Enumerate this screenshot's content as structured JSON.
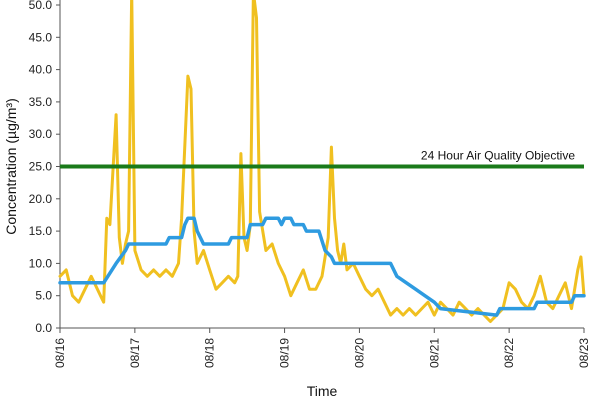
{
  "chart_data": {
    "type": "line",
    "title": "",
    "xlabel": "Time",
    "ylabel": "Concentration (µg/m³)",
    "ylim": [
      0,
      50
    ],
    "xlim": [
      "08/16",
      "08/23"
    ],
    "y_ticks": [
      "0.0",
      "5.0",
      "10.0",
      "15.0",
      "20.0",
      "25.0",
      "30.0",
      "35.0",
      "40.0",
      "45.0",
      "50.0"
    ],
    "x_ticks": [
      "08/16",
      "08/17",
      "08/18",
      "08/19",
      "08/20",
      "08/21",
      "08/22",
      "08/23"
    ],
    "grid": false,
    "legend": "none",
    "annotations": [
      {
        "text": "24 Hour Air Quality Objective",
        "value": 25
      }
    ],
    "reference_line": {
      "value": 25,
      "color": "#1a7a1a"
    },
    "series": [
      {
        "color": "#f0c020",
        "points": [
          [
            "08/16 00:00",
            8
          ],
          [
            "08/16 02:00",
            9
          ],
          [
            "08/16 04:00",
            5
          ],
          [
            "08/16 06:00",
            4
          ],
          [
            "08/16 08:00",
            6
          ],
          [
            "08/16 10:00",
            8
          ],
          [
            "08/16 12:00",
            6
          ],
          [
            "08/16 13:00",
            5
          ],
          [
            "08/16 14:00",
            4
          ],
          [
            "08/16 15:00",
            17
          ],
          [
            "08/16 16:00",
            16
          ],
          [
            "08/16 18:00",
            33
          ],
          [
            "08/16 19:00",
            14
          ],
          [
            "08/16 20:00",
            10
          ],
          [
            "08/16 21:00",
            13
          ],
          [
            "08/16 22:00",
            15
          ],
          [
            "08/16 23:00",
            52
          ],
          [
            "08/17 00:00",
            12
          ],
          [
            "08/17 02:00",
            9
          ],
          [
            "08/17 04:00",
            8
          ],
          [
            "08/17 06:00",
            9
          ],
          [
            "08/17 08:00",
            8
          ],
          [
            "08/17 10:00",
            9
          ],
          [
            "08/17 12:00",
            8
          ],
          [
            "08/17 14:00",
            10
          ],
          [
            "08/17 15:00",
            17
          ],
          [
            "08/17 17:00",
            39
          ],
          [
            "08/17 18:00",
            37
          ],
          [
            "08/17 19:00",
            15
          ],
          [
            "08/17 20:00",
            10
          ],
          [
            "08/17 22:00",
            12
          ],
          [
            "08/18 00:00",
            9
          ],
          [
            "08/18 02:00",
            6
          ],
          [
            "08/18 04:00",
            7
          ],
          [
            "08/18 06:00",
            8
          ],
          [
            "08/18 08:00",
            7
          ],
          [
            "08/18 09:00",
            8
          ],
          [
            "08/18 10:00",
            27
          ],
          [
            "08/18 11:00",
            14
          ],
          [
            "08/18 12:00",
            12
          ],
          [
            "08/18 13:00",
            16
          ],
          [
            "08/18 14:00",
            52
          ],
          [
            "08/18 15:00",
            48
          ],
          [
            "08/18 16:00",
            18
          ],
          [
            "08/18 18:00",
            12
          ],
          [
            "08/18 20:00",
            13
          ],
          [
            "08/18 22:00",
            10
          ],
          [
            "08/19 00:00",
            8
          ],
          [
            "08/19 02:00",
            5
          ],
          [
            "08/19 04:00",
            7
          ],
          [
            "08/19 06:00",
            9
          ],
          [
            "08/19 08:00",
            6
          ],
          [
            "08/19 10:00",
            6
          ],
          [
            "08/19 12:00",
            8
          ],
          [
            "08/19 14:00",
            14
          ],
          [
            "08/19 15:00",
            28
          ],
          [
            "08/19 16:00",
            17
          ],
          [
            "08/19 17:00",
            12
          ],
          [
            "08/19 18:00",
            10
          ],
          [
            "08/19 19:00",
            13
          ],
          [
            "08/19 20:00",
            9
          ],
          [
            "08/19 22:00",
            10
          ],
          [
            "08/20 00:00",
            8
          ],
          [
            "08/20 02:00",
            6
          ],
          [
            "08/20 04:00",
            5
          ],
          [
            "08/20 06:00",
            6
          ],
          [
            "08/20 08:00",
            4
          ],
          [
            "08/20 10:00",
            2
          ],
          [
            "08/20 12:00",
            3
          ],
          [
            "08/20 14:00",
            2
          ],
          [
            "08/20 16:00",
            3
          ],
          [
            "08/20 18:00",
            2
          ],
          [
            "08/20 20:00",
            3
          ],
          [
            "08/20 22:00",
            4
          ],
          [
            "08/21 00:00",
            2
          ],
          [
            "08/21 02:00",
            4
          ],
          [
            "08/21 04:00",
            3
          ],
          [
            "08/21 06:00",
            2
          ],
          [
            "08/21 08:00",
            4
          ],
          [
            "08/21 10:00",
            3
          ],
          [
            "08/21 12:00",
            2
          ],
          [
            "08/21 14:00",
            3
          ],
          [
            "08/21 16:00",
            2
          ],
          [
            "08/21 18:00",
            1
          ],
          [
            "08/21 20:00",
            2
          ],
          [
            "08/21 22:00",
            3
          ],
          [
            "08/22 00:00",
            7
          ],
          [
            "08/22 02:00",
            6
          ],
          [
            "08/22 04:00",
            4
          ],
          [
            "08/22 06:00",
            3
          ],
          [
            "08/22 08:00",
            5
          ],
          [
            "08/22 10:00",
            8
          ],
          [
            "08/22 12:00",
            4
          ],
          [
            "08/22 14:00",
            3
          ],
          [
            "08/22 16:00",
            5
          ],
          [
            "08/22 18:00",
            7
          ],
          [
            "08/22 20:00",
            3
          ],
          [
            "08/22 22:00",
            9
          ],
          [
            "08/22 23:00",
            11
          ],
          [
            "08/23 00:00",
            5
          ]
        ]
      },
      {
        "color": "#2e9be0",
        "points": [
          [
            "08/16 00:00",
            7
          ],
          [
            "08/16 14:00",
            7
          ],
          [
            "08/16 18:00",
            10
          ],
          [
            "08/16 21:00",
            12
          ],
          [
            "08/16 22:00",
            13
          ],
          [
            "08/17 10:00",
            13
          ],
          [
            "08/17 11:00",
            14
          ],
          [
            "08/17 15:00",
            14
          ],
          [
            "08/17 16:00",
            16
          ],
          [
            "08/17 17:00",
            17
          ],
          [
            "08/17 19:00",
            17
          ],
          [
            "08/17 20:00",
            15
          ],
          [
            "08/17 21:00",
            14
          ],
          [
            "08/17 22:00",
            13
          ],
          [
            "08/18 06:00",
            13
          ],
          [
            "08/18 07:00",
            14
          ],
          [
            "08/18 12:00",
            14
          ],
          [
            "08/18 13:00",
            16
          ],
          [
            "08/18 17:00",
            16
          ],
          [
            "08/18 18:00",
            17
          ],
          [
            "08/18 22:00",
            17
          ],
          [
            "08/18 23:00",
            16
          ],
          [
            "08/19 00:00",
            17
          ],
          [
            "08/19 02:00",
            17
          ],
          [
            "08/19 03:00",
            16
          ],
          [
            "08/19 06:00",
            16
          ],
          [
            "08/19 07:00",
            15
          ],
          [
            "08/19 11:00",
            15
          ],
          [
            "08/19 13:00",
            12
          ],
          [
            "08/19 15:00",
            11
          ],
          [
            "08/19 16:00",
            10
          ],
          [
            "08/20 10:00",
            10
          ],
          [
            "08/20 12:00",
            8
          ],
          [
            "08/20 18:00",
            6
          ],
          [
            "08/20 21:00",
            5
          ],
          [
            "08/21 00:00",
            4
          ],
          [
            "08/21 02:00",
            3
          ],
          [
            "08/21 20:00",
            2
          ],
          [
            "08/21 21:00",
            3
          ],
          [
            "08/22 08:00",
            3
          ],
          [
            "08/22 09:00",
            4
          ],
          [
            "08/22 20:00",
            4
          ],
          [
            "08/22 21:00",
            5
          ],
          [
            "08/23 00:00",
            5
          ]
        ]
      }
    ]
  }
}
